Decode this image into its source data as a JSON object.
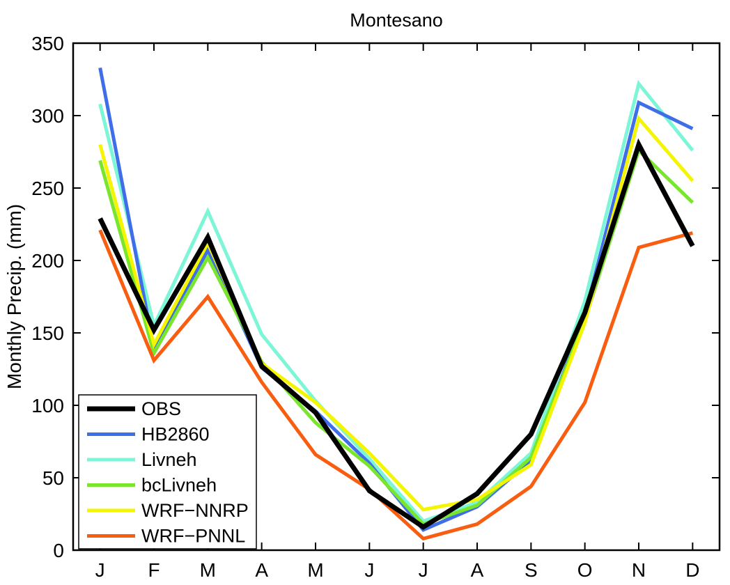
{
  "figure": {
    "title": "Montesano",
    "ylabel": "Monthly Precip. (mm)"
  },
  "chart_data": {
    "type": "line",
    "title": "Montesano",
    "xlabel": "",
    "ylabel": "Monthly Precip. (mm)",
    "categories": [
      "J",
      "F",
      "M",
      "A",
      "M",
      "J",
      "J",
      "A",
      "S",
      "O",
      "N",
      "D"
    ],
    "ylim": [
      0,
      350
    ],
    "yticks": [
      0,
      50,
      100,
      150,
      200,
      250,
      300,
      350
    ],
    "grid": false,
    "frame": true,
    "frame_color": "#000000",
    "background_color": "#ffffff",
    "legend_position": "lower-left-inside",
    "series": [
      {
        "name": "OBS",
        "color": "#000000",
        "line_width": 7,
        "values": [
          229,
          152,
          216,
          127,
          95,
          41,
          16,
          39,
          80,
          164,
          280,
          210
        ]
      },
      {
        "name": "HB2860",
        "color": "#3f6ee8",
        "line_width": 5,
        "values": [
          333,
          139,
          207,
          126,
          96,
          60,
          14,
          30,
          62,
          162,
          309,
          291
        ]
      },
      {
        "name": "Livneh",
        "color": "#7df5d7",
        "line_width": 5,
        "values": [
          308,
          155,
          234,
          149,
          103,
          63,
          20,
          33,
          67,
          172,
          322,
          276
        ]
      },
      {
        "name": "bcLivneh",
        "color": "#79e52c",
        "line_width": 5,
        "values": [
          269,
          136,
          202,
          130,
          88,
          58,
          18,
          31,
          64,
          159,
          276,
          240
        ]
      },
      {
        "name": "WRF−NNRP",
        "color": "#f4f500",
        "line_width": 5,
        "values": [
          280,
          142,
          212,
          129,
          102,
          67,
          28,
          35,
          59,
          157,
          298,
          255
        ]
      },
      {
        "name": "WRF−PNNL",
        "color": "#f85d10",
        "line_width": 5,
        "values": [
          221,
          131,
          175,
          116,
          66,
          42,
          8,
          18,
          44,
          102,
          209,
          219
        ]
      }
    ],
    "draw_order": [
      2,
      1,
      3,
      4,
      5,
      0
    ]
  }
}
